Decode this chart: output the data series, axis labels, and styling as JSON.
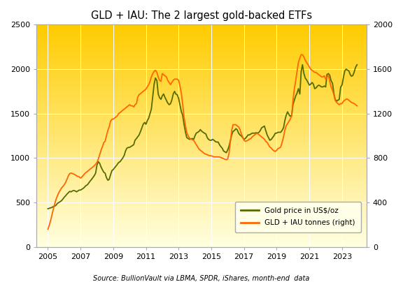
{
  "title": "GLD + IAU: The 2 largest gold-backed ETFs",
  "source": "Source: BullionVault via LBMA, SPDR, iShares, month-end  data",
  "left_ylim": [
    0,
    2500
  ],
  "right_ylim": [
    0,
    2000
  ],
  "left_yticks": [
    0,
    500,
    1000,
    1500,
    2000,
    2500
  ],
  "right_yticks": [
    0,
    400,
    800,
    1200,
    1600,
    2000
  ],
  "xticks": [
    2005,
    2007,
    2009,
    2011,
    2013,
    2015,
    2017,
    2019,
    2021,
    2023
  ],
  "xlim": [
    2004.3,
    2024.5
  ],
  "gold_color": "#556b00",
  "etf_color": "#ff6600",
  "background_top": "#ffcc00",
  "background_bottom": "#ffffe0",
  "grid_color": "#ccccaa",
  "gold_price": {
    "years": [
      2005.0,
      2005.08,
      2005.17,
      2005.25,
      2005.33,
      2005.42,
      2005.5,
      2005.58,
      2005.67,
      2005.75,
      2005.83,
      2005.92,
      2006.0,
      2006.08,
      2006.17,
      2006.25,
      2006.33,
      2006.42,
      2006.5,
      2006.58,
      2006.67,
      2006.75,
      2006.83,
      2006.92,
      2007.0,
      2007.08,
      2007.17,
      2007.25,
      2007.33,
      2007.42,
      2007.5,
      2007.58,
      2007.67,
      2007.75,
      2007.83,
      2007.92,
      2008.0,
      2008.08,
      2008.17,
      2008.25,
      2008.33,
      2008.42,
      2008.5,
      2008.58,
      2008.67,
      2008.75,
      2008.83,
      2008.92,
      2009.0,
      2009.08,
      2009.17,
      2009.25,
      2009.33,
      2009.42,
      2009.5,
      2009.58,
      2009.67,
      2009.75,
      2009.83,
      2009.92,
      2010.0,
      2010.08,
      2010.17,
      2010.25,
      2010.33,
      2010.42,
      2010.5,
      2010.58,
      2010.67,
      2010.75,
      2010.83,
      2010.92,
      2011.0,
      2011.08,
      2011.17,
      2011.25,
      2011.33,
      2011.42,
      2011.5,
      2011.58,
      2011.67,
      2011.75,
      2011.83,
      2011.92,
      2012.0,
      2012.08,
      2012.17,
      2012.25,
      2012.33,
      2012.42,
      2012.5,
      2012.58,
      2012.67,
      2012.75,
      2012.83,
      2012.92,
      2013.0,
      2013.08,
      2013.17,
      2013.25,
      2013.33,
      2013.42,
      2013.5,
      2013.58,
      2013.67,
      2013.75,
      2013.83,
      2013.92,
      2014.0,
      2014.08,
      2014.17,
      2014.25,
      2014.33,
      2014.42,
      2014.5,
      2014.58,
      2014.67,
      2014.75,
      2014.83,
      2014.92,
      2015.0,
      2015.08,
      2015.17,
      2015.25,
      2015.33,
      2015.42,
      2015.5,
      2015.58,
      2015.67,
      2015.75,
      2015.83,
      2015.92,
      2016.0,
      2016.08,
      2016.17,
      2016.25,
      2016.33,
      2016.42,
      2016.5,
      2016.58,
      2016.67,
      2016.75,
      2016.83,
      2016.92,
      2017.0,
      2017.08,
      2017.17,
      2017.25,
      2017.33,
      2017.42,
      2017.5,
      2017.58,
      2017.67,
      2017.75,
      2017.83,
      2017.92,
      2018.0,
      2018.08,
      2018.17,
      2018.25,
      2018.33,
      2018.42,
      2018.5,
      2018.58,
      2018.67,
      2018.75,
      2018.83,
      2018.92,
      2019.0,
      2019.08,
      2019.17,
      2019.25,
      2019.33,
      2019.42,
      2019.5,
      2019.58,
      2019.67,
      2019.75,
      2019.83,
      2019.92,
      2020.0,
      2020.08,
      2020.17,
      2020.25,
      2020.33,
      2020.42,
      2020.5,
      2020.58,
      2020.67,
      2020.75,
      2020.83,
      2020.92,
      2021.0,
      2021.08,
      2021.17,
      2021.25,
      2021.33,
      2021.42,
      2021.5,
      2021.58,
      2021.67,
      2021.75,
      2021.83,
      2021.92,
      2022.0,
      2022.08,
      2022.17,
      2022.25,
      2022.33,
      2022.42,
      2022.5,
      2022.58,
      2022.67,
      2022.75,
      2022.83,
      2022.92,
      2023.0,
      2023.08,
      2023.17,
      2023.25,
      2023.33,
      2023.42,
      2023.5,
      2023.58,
      2023.67,
      2023.75,
      2023.83,
      2023.92
    ],
    "values": [
      430,
      435,
      440,
      445,
      455,
      460,
      470,
      490,
      500,
      510,
      520,
      540,
      560,
      575,
      595,
      610,
      625,
      620,
      630,
      635,
      630,
      620,
      630,
      640,
      640,
      650,
      660,
      675,
      690,
      700,
      720,
      740,
      760,
      780,
      800,
      830,
      920,
      960,
      940,
      900,
      870,
      840,
      830,
      780,
      750,
      760,
      810,
      860,
      870,
      890,
      910,
      930,
      950,
      960,
      980,
      1000,
      1030,
      1080,
      1110,
      1120,
      1120,
      1130,
      1140,
      1150,
      1200,
      1220,
      1240,
      1260,
      1300,
      1340,
      1380,
      1400,
      1380,
      1420,
      1450,
      1500,
      1550,
      1700,
      1830,
      1900,
      1870,
      1720,
      1680,
      1660,
      1700,
      1720,
      1680,
      1650,
      1620,
      1600,
      1610,
      1650,
      1720,
      1750,
      1720,
      1710,
      1670,
      1600,
      1520,
      1480,
      1380,
      1290,
      1230,
      1220,
      1210,
      1215,
      1220,
      1210,
      1250,
      1280,
      1290,
      1300,
      1320,
      1300,
      1290,
      1280,
      1270,
      1230,
      1210,
      1200,
      1200,
      1210,
      1200,
      1185,
      1180,
      1180,
      1150,
      1130,
      1110,
      1080,
      1070,
      1060,
      1090,
      1130,
      1200,
      1260,
      1300,
      1310,
      1330,
      1320,
      1280,
      1260,
      1250,
      1230,
      1210,
      1220,
      1240,
      1260,
      1260,
      1270,
      1280,
      1280,
      1280,
      1285,
      1280,
      1290,
      1310,
      1340,
      1350,
      1360,
      1310,
      1260,
      1230,
      1200,
      1210,
      1230,
      1250,
      1280,
      1280,
      1290,
      1290,
      1290,
      1310,
      1340,
      1420,
      1480,
      1520,
      1490,
      1470,
      1480,
      1600,
      1650,
      1700,
      1730,
      1780,
      1720,
      1970,
      2050,
      1950,
      1900,
      1880,
      1850,
      1820,
      1830,
      1850,
      1830,
      1780,
      1790,
      1810,
      1820,
      1810,
      1800,
      1800,
      1810,
      1800,
      1940,
      1950,
      1930,
      1870,
      1840,
      1730,
      1660,
      1640,
      1650,
      1660,
      1800,
      1820,
      1900,
      1980,
      2000,
      1990,
      1980,
      1940,
      1920,
      1930,
      1970,
      2020,
      2050
    ]
  },
  "etf_tonnes": {
    "years": [
      2005.0,
      2005.08,
      2005.17,
      2005.25,
      2005.33,
      2005.42,
      2005.5,
      2005.58,
      2005.67,
      2005.75,
      2005.83,
      2005.92,
      2006.0,
      2006.08,
      2006.17,
      2006.25,
      2006.33,
      2006.42,
      2006.5,
      2006.58,
      2006.67,
      2006.75,
      2006.83,
      2006.92,
      2007.0,
      2007.08,
      2007.17,
      2007.25,
      2007.33,
      2007.42,
      2007.5,
      2007.58,
      2007.67,
      2007.75,
      2007.83,
      2007.92,
      2008.0,
      2008.08,
      2008.17,
      2008.25,
      2008.33,
      2008.42,
      2008.5,
      2008.58,
      2008.67,
      2008.75,
      2008.83,
      2008.92,
      2009.0,
      2009.08,
      2009.17,
      2009.25,
      2009.33,
      2009.42,
      2009.5,
      2009.58,
      2009.67,
      2009.75,
      2009.83,
      2009.92,
      2010.0,
      2010.08,
      2010.17,
      2010.25,
      2010.33,
      2010.42,
      2010.5,
      2010.58,
      2010.67,
      2010.75,
      2010.83,
      2010.92,
      2011.0,
      2011.08,
      2011.17,
      2011.25,
      2011.33,
      2011.42,
      2011.5,
      2011.58,
      2011.67,
      2011.75,
      2011.83,
      2011.92,
      2012.0,
      2012.08,
      2012.17,
      2012.25,
      2012.33,
      2012.42,
      2012.5,
      2012.58,
      2012.67,
      2012.75,
      2012.83,
      2012.92,
      2013.0,
      2013.08,
      2013.17,
      2013.25,
      2013.33,
      2013.42,
      2013.5,
      2013.58,
      2013.67,
      2013.75,
      2013.83,
      2013.92,
      2014.0,
      2014.08,
      2014.17,
      2014.25,
      2014.33,
      2014.42,
      2014.5,
      2014.58,
      2014.67,
      2014.75,
      2014.83,
      2014.92,
      2015.0,
      2015.08,
      2015.17,
      2015.25,
      2015.33,
      2015.42,
      2015.5,
      2015.58,
      2015.67,
      2015.75,
      2015.83,
      2015.92,
      2016.0,
      2016.08,
      2016.17,
      2016.25,
      2016.33,
      2016.42,
      2016.5,
      2016.58,
      2016.67,
      2016.75,
      2016.83,
      2016.92,
      2017.0,
      2017.08,
      2017.17,
      2017.25,
      2017.33,
      2017.42,
      2017.5,
      2017.58,
      2017.67,
      2017.75,
      2017.83,
      2017.92,
      2018.0,
      2018.08,
      2018.17,
      2018.25,
      2018.33,
      2018.42,
      2018.5,
      2018.58,
      2018.67,
      2018.75,
      2018.83,
      2018.92,
      2019.0,
      2019.08,
      2019.17,
      2019.25,
      2019.33,
      2019.42,
      2019.5,
      2019.58,
      2019.67,
      2019.75,
      2019.83,
      2019.92,
      2020.0,
      2020.08,
      2020.17,
      2020.25,
      2020.33,
      2020.42,
      2020.5,
      2020.58,
      2020.67,
      2020.75,
      2020.83,
      2020.92,
      2021.0,
      2021.08,
      2021.17,
      2021.25,
      2021.33,
      2021.42,
      2021.5,
      2021.58,
      2021.67,
      2021.75,
      2021.83,
      2021.92,
      2022.0,
      2022.08,
      2022.17,
      2022.25,
      2022.33,
      2022.42,
      2022.5,
      2022.58,
      2022.67,
      2022.75,
      2022.83,
      2022.92,
      2023.0,
      2023.08,
      2023.17,
      2023.25,
      2023.33,
      2023.42,
      2023.5,
      2023.58,
      2023.67,
      2023.75,
      2023.83,
      2023.92
    ],
    "values": [
      160,
      195,
      240,
      290,
      340,
      390,
      430,
      460,
      490,
      510,
      530,
      545,
      560,
      580,
      610,
      640,
      660,
      665,
      660,
      655,
      650,
      640,
      635,
      630,
      620,
      630,
      645,
      660,
      670,
      680,
      690,
      700,
      710,
      720,
      730,
      745,
      760,
      790,
      830,
      870,
      900,
      940,
      950,
      1000,
      1050,
      1080,
      1130,
      1150,
      1150,
      1160,
      1170,
      1180,
      1200,
      1210,
      1220,
      1230,
      1240,
      1250,
      1260,
      1270,
      1280,
      1270,
      1270,
      1260,
      1280,
      1290,
      1350,
      1370,
      1380,
      1390,
      1400,
      1410,
      1420,
      1440,
      1460,
      1490,
      1530,
      1560,
      1580,
      1590,
      1570,
      1530,
      1500,
      1490,
      1560,
      1550,
      1540,
      1530,
      1500,
      1480,
      1460,
      1480,
      1500,
      1510,
      1510,
      1510,
      1500,
      1450,
      1380,
      1280,
      1170,
      1090,
      1030,
      1000,
      980,
      970,
      965,
      960,
      940,
      920,
      900,
      880,
      870,
      860,
      850,
      840,
      835,
      830,
      825,
      820,
      820,
      815,
      810,
      810,
      810,
      810,
      810,
      805,
      800,
      795,
      790,
      785,
      790,
      840,
      950,
      1050,
      1100,
      1100,
      1100,
      1090,
      1080,
      1060,
      1020,
      990,
      960,
      950,
      955,
      960,
      970,
      975,
      990,
      1000,
      1010,
      1020,
      1020,
      1010,
      1000,
      990,
      980,
      970,
      950,
      940,
      920,
      900,
      890,
      875,
      865,
      860,
      870,
      885,
      890,
      900,
      940,
      990,
      1050,
      1090,
      1110,
      1130,
      1150,
      1180,
      1320,
      1420,
      1500,
      1580,
      1660,
      1700,
      1730,
      1730,
      1710,
      1680,
      1660,
      1640,
      1620,
      1600,
      1590,
      1580,
      1570,
      1570,
      1560,
      1550,
      1540,
      1530,
      1530,
      1540,
      1510,
      1530,
      1540,
      1490,
      1440,
      1410,
      1370,
      1320,
      1300,
      1290,
      1280,
      1290,
      1290,
      1310,
      1320,
      1330,
      1330,
      1320,
      1310,
      1300,
      1295,
      1290,
      1280,
      1270
    ]
  }
}
